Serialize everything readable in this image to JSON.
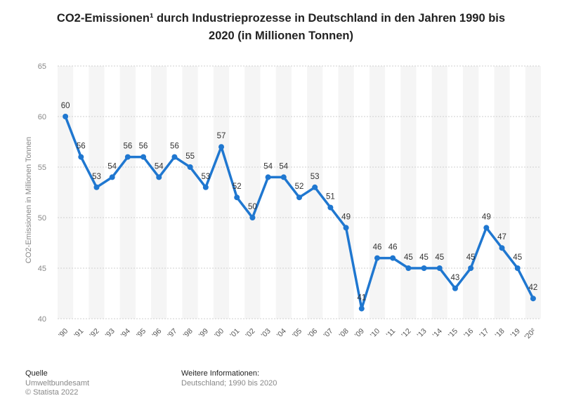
{
  "chart_data": {
    "type": "line",
    "title_line1": "CO2-Emissionen¹ durch Industrieprozesse in Deutschland in den Jahren 1990 bis",
    "title_line2": "2020 (in Millionen Tonnen)",
    "ylabel": "CO2-Emissionen in Millionen Tonnen",
    "xlabel": "",
    "ylim": [
      40,
      65
    ],
    "yticks": [
      "40",
      "45",
      "50",
      "55",
      "60",
      "65"
    ],
    "categories": [
      "'90",
      "'91",
      "'92",
      "'93",
      "'94",
      "'95",
      "'96",
      "'97",
      "'98",
      "'99",
      "'00",
      "'01",
      "'02",
      "'03",
      "'04",
      "'05",
      "'06",
      "'07",
      "'08",
      "'09",
      "'10",
      "'11",
      "'12",
      "'13",
      "'14",
      "'15",
      "'16",
      "'17",
      "'18",
      "'19",
      "'20²"
    ],
    "values": [
      60,
      56,
      53,
      54,
      56,
      56,
      54,
      56,
      55,
      53,
      57,
      52,
      50,
      54,
      54,
      52,
      53,
      51,
      49,
      41,
      46,
      46,
      45,
      45,
      45,
      43,
      45,
      49,
      47,
      45,
      42
    ],
    "labels": [
      "60",
      "56",
      "53",
      "54",
      "56",
      "56",
      "54",
      "56",
      "55",
      "53",
      "57",
      "52",
      "50",
      "54",
      "54",
      "52",
      "53",
      "51",
      "49",
      "41",
      "46",
      "46",
      "45",
      "45",
      "45",
      "43",
      "45",
      "49",
      "47",
      "45",
      "42"
    ],
    "line_color": "#1f77d0",
    "grid": true
  },
  "footer": {
    "source_heading": "Quelle",
    "source_line1": "Umweltbundesamt",
    "source_line2": "© Statista 2022",
    "info_heading": "Weitere Informationen:",
    "info_line1": "Deutschland; 1990 bis 2020"
  }
}
